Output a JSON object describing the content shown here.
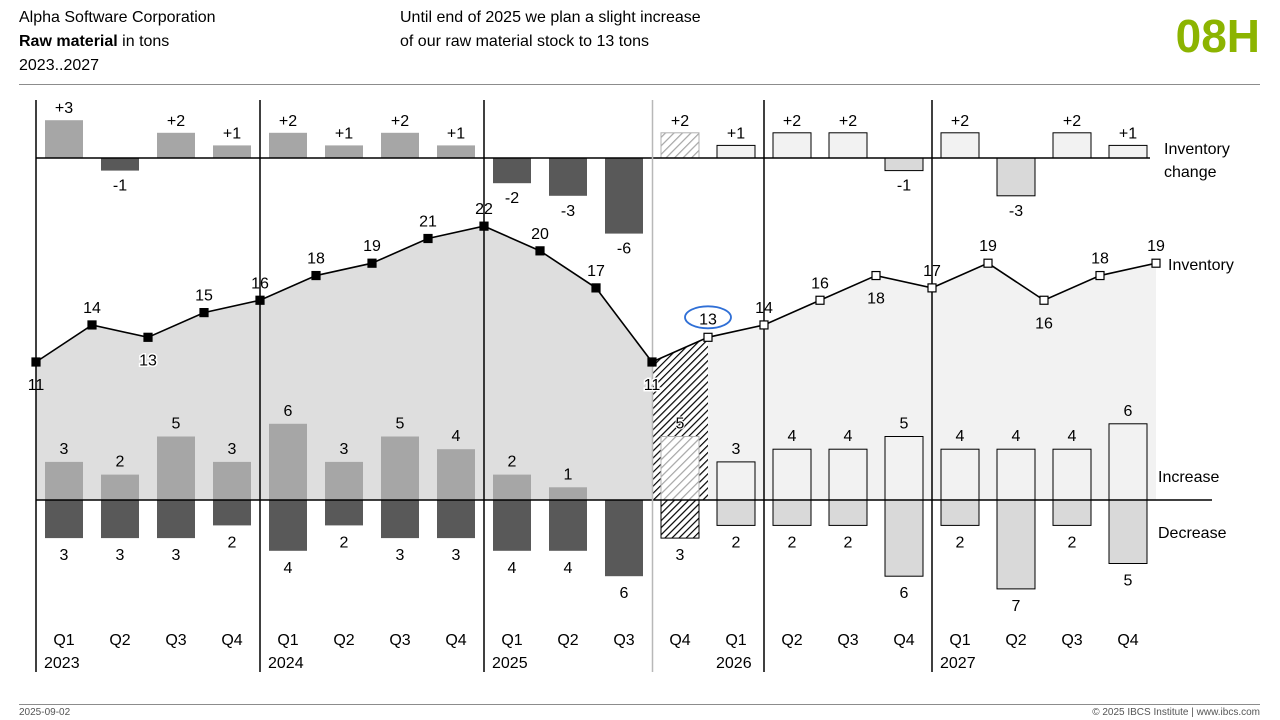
{
  "header": {
    "company": "Alpha Software Corporation",
    "measure_bold": "Raw material",
    "measure_unit": " in tons",
    "period": "2023..2027",
    "message_line1": "Until end of 2025 we plan a slight increase",
    "message_line2": "of our raw material stock to 13 tons",
    "page_id": "08H"
  },
  "footer": {
    "date": "2025-09-02",
    "copyright": "© 2025 IBCS Institute | www.ibcs.com"
  },
  "colors": {
    "actual_bar": "#a6a6a6",
    "actual_decrease": "#595959",
    "plan_fill": "#f2f2f2",
    "plan_decrease": "#d9d9d9",
    "actual_area": "#dedede",
    "plan_area": "#f2f2f2",
    "highlight": "#2f6fd6",
    "accent": "#8cb400"
  },
  "chart_data": {
    "type": "line",
    "quarters": [
      "Q1",
      "Q2",
      "Q3",
      "Q4",
      "Q1",
      "Q2",
      "Q3",
      "Q4",
      "Q1",
      "Q2",
      "Q3",
      "Q4",
      "Q1",
      "Q2",
      "Q3",
      "Q4",
      "Q1",
      "Q2",
      "Q3",
      "Q4"
    ],
    "years": [
      "2023",
      "2024",
      "2025",
      "2026",
      "2027"
    ],
    "scenario": [
      "AC",
      "AC",
      "AC",
      "AC",
      "AC",
      "AC",
      "AC",
      "AC",
      "AC",
      "AC",
      "AC",
      "FC",
      "PL",
      "PL",
      "PL",
      "PL",
      "PL",
      "PL",
      "PL",
      "PL"
    ],
    "start_inventory": 11,
    "inventory": [
      14,
      13,
      15,
      16,
      18,
      19,
      21,
      22,
      20,
      17,
      11,
      13,
      14,
      16,
      18,
      17,
      19,
      16,
      18,
      19
    ],
    "inventory_change": [
      3,
      -1,
      2,
      1,
      2,
      1,
      2,
      1,
      -2,
      -3,
      -6,
      2,
      1,
      2,
      2,
      -1,
      2,
      -3,
      2,
      1
    ],
    "increase": [
      3,
      2,
      5,
      3,
      6,
      3,
      5,
      4,
      2,
      1,
      0,
      5,
      3,
      4,
      4,
      5,
      4,
      4,
      4,
      6
    ],
    "decrease": [
      3,
      3,
      3,
      2,
      4,
      2,
      3,
      3,
      4,
      4,
      6,
      3,
      2,
      2,
      2,
      6,
      2,
      7,
      2,
      5
    ],
    "change_labels": [
      "+3",
      "-1",
      "+2",
      "+1",
      "+2",
      "+1",
      "+2",
      "+1",
      "-2",
      "-3",
      "-6",
      "+2",
      "+1",
      "+2",
      "+2",
      "-1",
      "+2",
      "-3",
      "+2",
      "+1"
    ],
    "inventory_labels": [
      "11",
      "14",
      "13",
      "15",
      "16",
      "18",
      "19",
      "21",
      "22",
      "20",
      "17",
      "11",
      "13",
      "14",
      "16",
      "18",
      "17",
      "19",
      "16",
      "18",
      "19"
    ],
    "increase_labels": [
      "3",
      "2",
      "5",
      "3",
      "6",
      "3",
      "5",
      "4",
      "2",
      "1",
      "5",
      "3",
      "4",
      "4",
      "5",
      "4",
      "4",
      "4",
      "6"
    ],
    "decrease_labels": [
      "3",
      "3",
      "3",
      "2",
      "4",
      "2",
      "3",
      "3",
      "4",
      "4",
      "6",
      "3",
      "2",
      "2",
      "2",
      "6",
      "2",
      "7",
      "2",
      "5"
    ],
    "legend": {
      "inventory_change_1": "Inventory",
      "inventory_change_2": "change",
      "inventory": "Inventory",
      "increase": "Increase",
      "decrease": "Decrease"
    },
    "highlighted_value": "13",
    "unit": "tons"
  }
}
